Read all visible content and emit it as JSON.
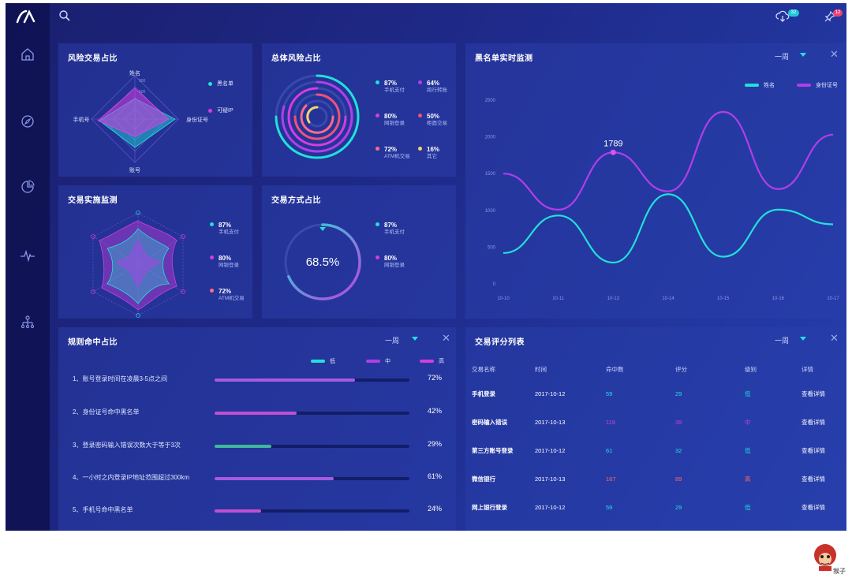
{
  "topbar": {
    "cloud_badge": "32",
    "pin_badge": "12"
  },
  "sidebar": {
    "items": [
      "home-icon",
      "compass-icon",
      "pie-icon",
      "pulse-icon",
      "org-icon"
    ]
  },
  "risk_ratio": {
    "title": "风险交易占比",
    "axis_labels": {
      "top": "姓名",
      "left": "手机号",
      "right": "身份证号",
      "bottom": "账号"
    },
    "ticks": [
      "900",
      "600"
    ],
    "legend": [
      {
        "label": "黑名单",
        "color": "#22e0d8"
      },
      {
        "label": "可疑IP",
        "color": "#d63ce0"
      }
    ]
  },
  "total_risk": {
    "title": "总体风险占比",
    "legend": [
      {
        "pct": "87%",
        "label": "手机支付",
        "color": "#22e0d8"
      },
      {
        "pct": "64%",
        "label": "跨行转账",
        "color": "#b23ee8"
      },
      {
        "pct": "80%",
        "label": "网银登录",
        "color": "#d63ce0"
      },
      {
        "pct": "50%",
        "label": "柜面交易",
        "color": "#f0507a"
      },
      {
        "pct": "72%",
        "label": "ATM机交易",
        "color": "#ff6a8a"
      },
      {
        "pct": "16%",
        "label": "其它",
        "color": "#f5d36a"
      }
    ]
  },
  "txn_monitor": {
    "title": "交易实施监测",
    "legend": [
      {
        "pct": "87%",
        "label": "手机支付",
        "color": "#22e0d8"
      },
      {
        "pct": "80%",
        "label": "网银登录",
        "color": "#d63ce0"
      },
      {
        "pct": "72%",
        "label": "ATM机交易",
        "color": "#ff6a8a"
      }
    ]
  },
  "txn_method": {
    "title": "交易方式占比",
    "center_value": "68.5%",
    "gauge_fraction": 0.685,
    "legend": [
      {
        "pct": "87%",
        "label": "手机支付",
        "color": "#22e0d8"
      },
      {
        "pct": "80%",
        "label": "网银登录",
        "color": "#d63ce0"
      }
    ]
  },
  "blacklist": {
    "title": "黑名单实时监测",
    "period": "一周",
    "legend": [
      {
        "label": "姓名",
        "color": "#22e0d8"
      },
      {
        "label": "身份证号",
        "color": "#b23ee8"
      }
    ],
    "annotation": "1789"
  },
  "chart_data": {
    "type": "line",
    "x": [
      "10-10",
      "10-11",
      "10-13",
      "10-14",
      "10-15",
      "10-16",
      "10-17"
    ],
    "ylim": [
      0,
      2500
    ],
    "yticks": [
      "2500",
      "2000",
      "1500",
      "1000",
      "500",
      "0"
    ],
    "grid": false,
    "legend_position": "top-right",
    "series": [
      {
        "name": "姓名",
        "color": "#22e0d8",
        "values": [
          420,
          930,
          290,
          1220,
          370,
          1010,
          810
        ]
      },
      {
        "name": "身份证号",
        "color": "#b23ee8",
        "values": [
          1500,
          1010,
          1789,
          1260,
          2340,
          1290,
          2030
        ]
      }
    ],
    "annotation": {
      "series": 1,
      "index": 2,
      "label": "1789"
    }
  },
  "rules": {
    "title": "规则命中占比",
    "period": "一周",
    "legend": [
      {
        "label": "低",
        "color": "#22e0d8"
      },
      {
        "label": "中",
        "color": "#b23ee8"
      },
      {
        "label": "高",
        "color": "#d63ce0"
      }
    ],
    "rows": [
      {
        "label": "1、账号登录时间在凌晨3-5点之间",
        "pct": "72%",
        "value": 0.72,
        "color": "#a65ae0"
      },
      {
        "label": "2、身份证号命中黑名单",
        "pct": "42%",
        "value": 0.42,
        "color": "#c050d0"
      },
      {
        "label": "3、登录密码输入错误次数大于等于3次",
        "pct": "29%",
        "value": 0.29,
        "color": "#3fb89a"
      },
      {
        "label": "4、一小时之内登录IP地址范围超过300km",
        "pct": "61%",
        "value": 0.61,
        "color": "#a65ae0"
      },
      {
        "label": "5、手机号命中黑名单",
        "pct": "24%",
        "value": 0.24,
        "color": "#c050d0"
      }
    ]
  },
  "score_table": {
    "title": "交易评分列表",
    "period": "一周",
    "headers": [
      "交易名称",
      "时间",
      "命中数",
      "评分",
      "级别",
      "详情"
    ],
    "rows": [
      {
        "name": "手机登录",
        "time": "2017-10-12",
        "hits": "59",
        "score": "29",
        "level": "低",
        "detail": "查看详情",
        "color": "#22e0e8"
      },
      {
        "name": "密码输入错误",
        "time": "2017-10-13",
        "hits": "119",
        "score": "39",
        "level": "中",
        "detail": "查看详情",
        "color": "#d63ce0"
      },
      {
        "name": "第三方账号登录",
        "time": "2017-10-12",
        "hits": "61",
        "score": "32",
        "level": "低",
        "detail": "查看详情",
        "color": "#22e0e8"
      },
      {
        "name": "微信银行",
        "time": "2017-10-13",
        "hits": "167",
        "score": "89",
        "level": "高",
        "detail": "查看详情",
        "color": "#ff6a5a"
      },
      {
        "name": "网上银行登录",
        "time": "2017-10-12",
        "hits": "59",
        "score": "29",
        "level": "低",
        "detail": "查看详情",
        "color": "#22e0e8"
      }
    ]
  },
  "watermark": {
    "text": "猴子"
  }
}
